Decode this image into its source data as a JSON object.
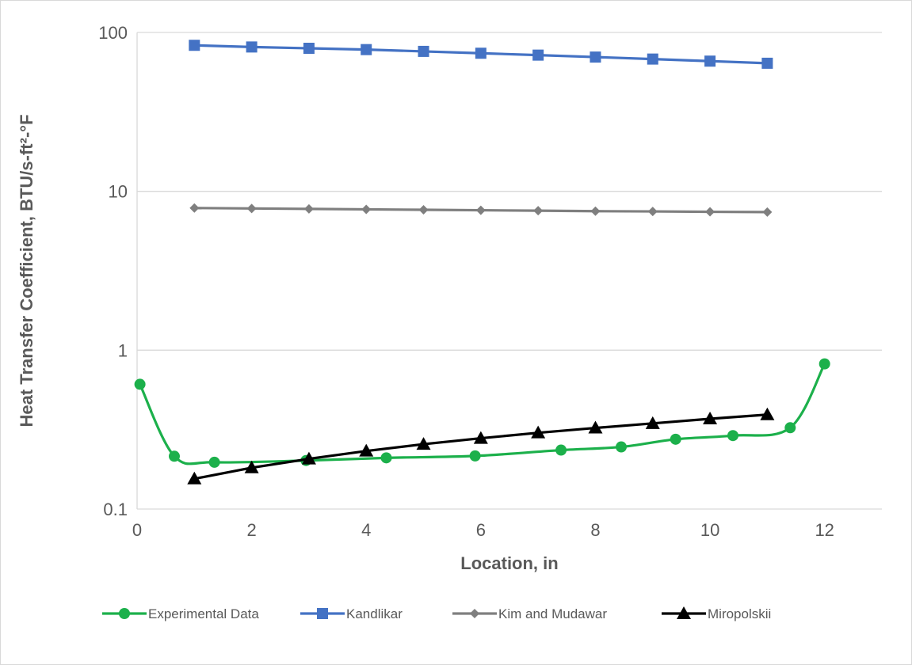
{
  "chart_data": {
    "type": "line",
    "title": "",
    "xlabel": "Location, in",
    "ylabel": "Heat Transfer Coefficient, BTU/s-ft²-°F",
    "xlim": [
      0,
      13
    ],
    "ylim": [
      0.1,
      100
    ],
    "yscale": "log",
    "x_ticks": [
      0,
      2,
      4,
      6,
      8,
      10,
      12
    ],
    "y_ticks": [
      0.1,
      1,
      10,
      100
    ],
    "x_tick_labels": [
      "0",
      "2",
      "4",
      "6",
      "8",
      "10",
      "12"
    ],
    "y_tick_labels": [
      "0.1",
      "1",
      "10",
      "100"
    ],
    "grid": "horizontal-major",
    "legend_position": "bottom",
    "series": [
      {
        "name": "Experimental Data",
        "color": "#1cb04b",
        "marker": "circle",
        "x": [
          0.05,
          0.65,
          1.35,
          2.95,
          4.35,
          5.9,
          7.4,
          8.45,
          9.4,
          10.4,
          11.4,
          12.0
        ],
        "y": [
          0.61,
          0.215,
          0.197,
          0.202,
          0.21,
          0.216,
          0.235,
          0.246,
          0.275,
          0.29,
          0.325,
          0.82
        ]
      },
      {
        "name": "Kandlikar",
        "color": "#4472c4",
        "marker": "square",
        "x": [
          1,
          2,
          3,
          4,
          5,
          6,
          7,
          8,
          9,
          10,
          11
        ],
        "y": [
          83,
          81,
          79.5,
          78,
          76,
          74,
          72,
          70,
          68,
          66,
          64
        ]
      },
      {
        "name": "Kim and Mudawar",
        "color": "#7f7f7f",
        "marker": "diamond",
        "x": [
          1,
          2,
          3,
          4,
          5,
          6,
          7,
          8,
          9,
          10,
          11
        ],
        "y": [
          7.85,
          7.8,
          7.75,
          7.7,
          7.65,
          7.6,
          7.55,
          7.5,
          7.47,
          7.43,
          7.4
        ]
      },
      {
        "name": "Miropolskii",
        "color": "#000000",
        "marker": "triangle",
        "x": [
          1,
          2,
          3,
          4,
          5,
          6,
          7,
          8,
          9,
          10,
          11
        ],
        "y": [
          0.155,
          0.182,
          0.207,
          0.232,
          0.256,
          0.279,
          0.302,
          0.324,
          0.346,
          0.37,
          0.393
        ]
      }
    ]
  }
}
